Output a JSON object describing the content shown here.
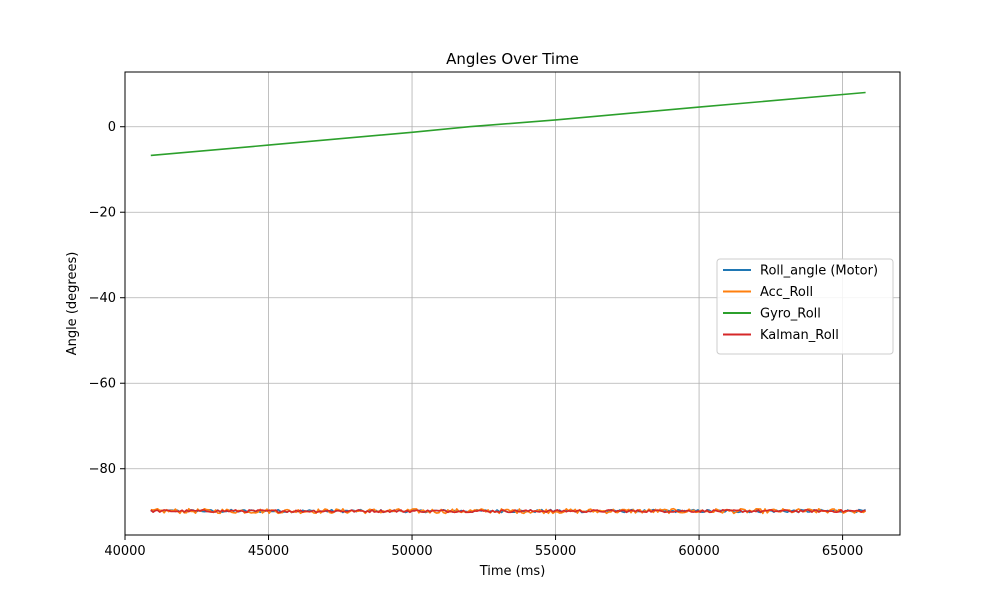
{
  "chart_data": {
    "type": "line",
    "title": "Angles Over Time",
    "xlabel": "Time (ms)",
    "ylabel": "Angle (degrees)",
    "xlim": [
      40000,
      67000
    ],
    "ylim": [
      -95.5,
      12.8
    ],
    "x_ticks": [
      40000,
      45000,
      50000,
      55000,
      60000,
      65000
    ],
    "y_ticks": [
      0,
      -20,
      -40,
      -60,
      -80
    ],
    "x_tick_labels": [
      "40000",
      "45000",
      "50000",
      "55000",
      "60000",
      "65000"
    ],
    "y_tick_labels": [
      "0",
      "−20",
      "−40",
      "−60",
      "−80"
    ],
    "grid": true,
    "legend_position": "center-right",
    "series": [
      {
        "name": "Roll_angle (Motor)",
        "color": "#1f77b4",
        "description": "noisy",
        "x": [
          40900,
          65800
        ],
        "y": [
          -89.9,
          -89.9
        ]
      },
      {
        "name": "Acc_Roll",
        "color": "#ff7f0e",
        "description": "noisy",
        "x": [
          40900,
          65800
        ],
        "y": [
          -89.9,
          -89.9
        ]
      },
      {
        "name": "Gyro_Roll",
        "color": "#2ca02c",
        "x": [
          40900,
          45000,
          50000,
          52000,
          55000,
          60000,
          65800
        ],
        "y": [
          -6.7,
          -4.3,
          -1.3,
          0.0,
          1.6,
          4.6,
          8.0
        ]
      },
      {
        "name": "Kalman_Roll",
        "color": "#d62728",
        "description": "noisy",
        "x": [
          40900,
          65800
        ],
        "y": [
          -89.9,
          -89.9
        ]
      }
    ]
  }
}
